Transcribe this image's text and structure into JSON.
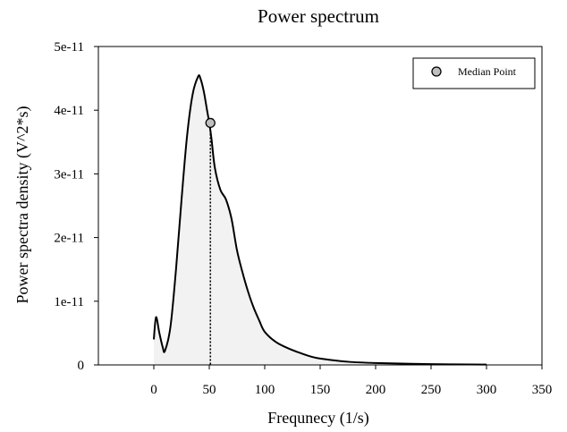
{
  "chart_data": {
    "type": "area",
    "title": "Power spectrum",
    "xlabel": "Frequnecy (1/s)",
    "ylabel": "Power spectra density (V^2*s)",
    "xlim": [
      -50,
      350
    ],
    "ylim": [
      0,
      5e-11
    ],
    "x_ticks": [
      0,
      50,
      100,
      150,
      200,
      250,
      300,
      350
    ],
    "x_tick_labels": [
      "0",
      "50",
      "100",
      "150",
      "200",
      "250",
      "300",
      "350"
    ],
    "y_ticks": [
      0,
      1e-11,
      2e-11,
      3e-11,
      4e-11,
      5e-11
    ],
    "y_tick_labels": [
      "0",
      "1e-11",
      "2e-11",
      "3e-11",
      "4e-11",
      "5e-11"
    ],
    "grid": false,
    "legend_position": "top-right",
    "series": [
      {
        "color": "#000000",
        "fill": "#f2f2f2",
        "x": [
          0,
          2,
          5,
          8,
          10,
          15,
          20,
          25,
          30,
          35,
          40,
          42,
          45,
          48,
          50,
          52,
          55,
          60,
          65,
          70,
          75,
          80,
          85,
          90,
          95,
          100,
          110,
          120,
          130,
          140,
          150,
          175,
          200,
          250,
          300
        ],
        "y": [
          4e-12,
          7.5e-12,
          5e-12,
          2.8e-12,
          2.2e-12,
          6e-12,
          1.5e-11,
          2.6e-11,
          3.6e-11,
          4.25e-11,
          4.53e-11,
          4.5e-11,
          4.3e-11,
          4e-11,
          3.8e-11,
          3.55e-11,
          3.1e-11,
          2.75e-11,
          2.6e-11,
          2.3e-11,
          1.8e-11,
          1.45e-11,
          1.15e-11,
          9e-12,
          7e-12,
          5.2e-12,
          3.6e-12,
          2.7e-12,
          2e-12,
          1.4e-12,
          1e-12,
          5e-13,
          3e-13,
          1.2e-13,
          5e-14
        ]
      }
    ],
    "median_point": {
      "label": "Median Point",
      "x": 51,
      "y": 3.8e-11,
      "color": "#bfbfbf"
    },
    "median_line": {
      "x": 51,
      "y": 3.8e-11,
      "style": "dotted"
    }
  }
}
